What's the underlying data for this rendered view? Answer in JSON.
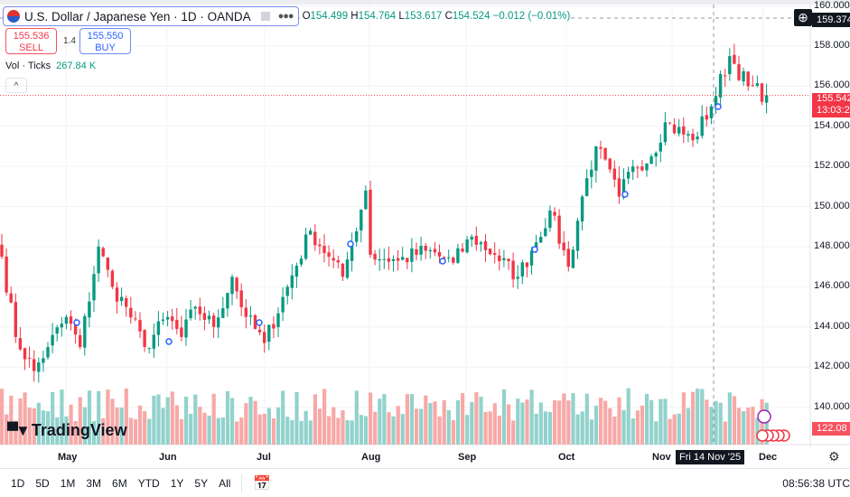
{
  "header": {
    "title": "U.S. Dollar / Japanese Yen · 1D · OANDA",
    "open_label": "O",
    "open": "154.499",
    "high_label": "H",
    "high": "154.764",
    "low_label": "L",
    "low": "153.617",
    "close_label": "C",
    "close": "154.524",
    "change": "−0.012 (−0.01%)"
  },
  "trade": {
    "sell_price": "155.536",
    "sell_label": "SELL",
    "spread": "1.4",
    "buy_price": "155.550",
    "buy_label": "BUY"
  },
  "volume": {
    "label": "Vol · Ticks",
    "value": "267.84 K"
  },
  "collapse_icon": "^",
  "y_axis": {
    "labels": [
      "160.000",
      "158.000",
      "156.000",
      "154.000",
      "152.000",
      "150.000",
      "148.000",
      "146.000",
      "144.000",
      "142.000",
      "140.000"
    ],
    "crosshair_price": "159.374",
    "last_price": "155.542",
    "countdown": "13:03:2",
    "volume_tag": "122.08"
  },
  "x_axis": {
    "labels": [
      "May",
      "Jun",
      "Jul",
      "Aug",
      "Sep",
      "Oct",
      "Nov",
      "Dec"
    ],
    "crosshair_date": "Fri 14 Nov '25"
  },
  "logo": "TradingView",
  "ranges": [
    "1D",
    "5D",
    "1M",
    "3M",
    "6M",
    "YTD",
    "1Y",
    "5Y",
    "All"
  ],
  "clock": "08:56:38 UTC",
  "colors": {
    "up": "#089981",
    "down": "#f23645",
    "vol_up": "#92d2cc",
    "vol_down": "#f7a9a7"
  },
  "chart_data": {
    "type": "candlestick",
    "ylim": [
      139.5,
      160.2
    ],
    "close_keypoints": [
      [
        0,
        147.5
      ],
      [
        3,
        143.5
      ],
      [
        7,
        141.8
      ],
      [
        10,
        143
      ],
      [
        14,
        144.5
      ],
      [
        17,
        143
      ],
      [
        21,
        148
      ],
      [
        24,
        146
      ],
      [
        27,
        145
      ],
      [
        31,
        143
      ],
      [
        36,
        144.5
      ],
      [
        39,
        143.5
      ],
      [
        42,
        145
      ],
      [
        46,
        144
      ],
      [
        50,
        146.5
      ],
      [
        53,
        144.5
      ],
      [
        57,
        143.2
      ],
      [
        62,
        146
      ],
      [
        67,
        148.8
      ],
      [
        71,
        147.5
      ],
      [
        74,
        146.5
      ],
      [
        76,
        148.2
      ],
      [
        79,
        150.8
      ],
      [
        80,
        147.6
      ],
      [
        86,
        147.3
      ],
      [
        92,
        147.8
      ],
      [
        98,
        147.2
      ],
      [
        102,
        148.5
      ],
      [
        107,
        147.6
      ],
      [
        112,
        146.5
      ],
      [
        115,
        147.8
      ],
      [
        119,
        149.8
      ],
      [
        123,
        147.0
      ],
      [
        126,
        150.5
      ],
      [
        129,
        153
      ],
      [
        134,
        150.5
      ],
      [
        137,
        152
      ],
      [
        141,
        152.5
      ],
      [
        144,
        154.2
      ],
      [
        150,
        153.3
      ],
      [
        154,
        155
      ],
      [
        158,
        157.5
      ],
      [
        162,
        156
      ],
      [
        166,
        155.54
      ]
    ]
  }
}
